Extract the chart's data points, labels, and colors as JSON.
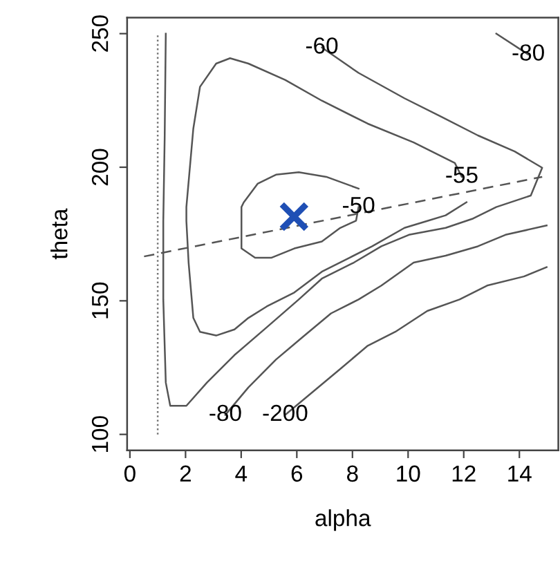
{
  "chart_data": {
    "type": "line",
    "xlabel": "alpha",
    "ylabel": "theta",
    "xlim": [
      -0.1,
      15.4
    ],
    "ylim": [
      94,
      256
    ],
    "xticks": [
      0,
      2,
      4,
      6,
      8,
      10,
      12,
      14
    ],
    "yticks": [
      100,
      150,
      200,
      250
    ],
    "line_style": "solid",
    "marker": "none",
    "series": [
      {
        "name": "-50",
        "color": "#555555",
        "x": [
          8.22,
          8.13,
          7.56,
          6.9,
          5.91,
          5.08,
          4.5,
          4.01,
          4.01,
          4.09,
          4.59,
          5.25,
          6.07,
          7.06,
          8.22
        ],
        "values": [
          185.1,
          180.0,
          177.3,
          172.2,
          169.6,
          166.1,
          166.1,
          169.6,
          185.1,
          186.8,
          193.8,
          197.2,
          198.1,
          196.4,
          192.0
        ]
      },
      {
        "name": "-55",
        "color": "#555555",
        "x": [
          11.93,
          11.68,
          10.2,
          8.55,
          6.9,
          5.58,
          4.26,
          3.6,
          3.1,
          2.52,
          2.28,
          2.03,
          2.03,
          2.11,
          2.28,
          2.52,
          3.1,
          3.76,
          4.26,
          4.92,
          5.91,
          6.9,
          7.89,
          8.71,
          9.87,
          10.69,
          11.35,
          12.1
        ],
        "values": [
          196.4,
          201.6,
          209.3,
          216.3,
          224.9,
          232.7,
          238.8,
          240.8,
          238.8,
          230.1,
          214.5,
          185.1,
          179.9,
          164.3,
          143.6,
          138.4,
          137.0,
          139.3,
          143.6,
          147.9,
          153.1,
          160.9,
          166.1,
          170.4,
          177.3,
          179.9,
          182.0,
          186.9
        ]
      },
      {
        "name": "-60",
        "color": "#555555",
        "x": [
          6.9,
          8.22,
          9.87,
          11.19,
          12.51,
          13.83,
          14.82,
          14.41,
          13.17,
          12.34,
          11.35,
          10.03,
          9.04,
          8.05,
          6.9,
          6.07,
          4.92,
          3.76,
          2.77,
          2.03,
          1.45,
          1.29,
          1.2,
          1.2,
          1.25,
          1.29
        ],
        "values": [
          244.8,
          235.3,
          225.8,
          218.9,
          211.9,
          205.9,
          199.8,
          189.4,
          185.1,
          180.8,
          177.3,
          174.7,
          170.4,
          164.3,
          158.3,
          150.5,
          140.1,
          129.7,
          119.4,
          110.7,
          110.7,
          119.4,
          150.5,
          179.9,
          211.1,
          250.0
        ]
      },
      {
        "name": "-80",
        "color": "#555555",
        "x": [
          14.32,
          13.17
        ],
        "values": [
          242.2,
          250.0
        ]
      },
      {
        "name": "-80",
        "color": "#555555",
        "x": [
          3.43,
          4.26,
          5.25,
          6.24,
          7.23,
          8.22,
          9.04,
          10.2,
          11.35,
          12.51,
          13.5,
          14.98
        ],
        "values": [
          107.3,
          117.6,
          128.0,
          136.7,
          145.3,
          150.5,
          155.7,
          164.3,
          166.9,
          170.4,
          174.7,
          178.2
        ]
      },
      {
        "name": "-200",
        "color": "#555555",
        "x": [
          5.58,
          6.57,
          7.56,
          8.55,
          9.54,
          10.69,
          11.85,
          12.84,
          14.16,
          14.98
        ],
        "values": [
          107.3,
          115.9,
          124.5,
          133.2,
          138.4,
          146.2,
          150.5,
          155.7,
          159.1,
          162.6
        ]
      },
      {
        "color": "#555555",
        "line_style": "dashed",
        "x": [
          0.51,
          14.82
        ],
        "values": [
          166.6,
          196.4
        ]
      },
      {
        "color": "#777777",
        "line_style": "dotted",
        "x": [
          1.0,
          1.0
        ],
        "values": [
          100,
          250
        ]
      },
      {
        "type": "scatter",
        "marker": "cross",
        "color": "#1f4fb5",
        "x": [
          5.9
        ],
        "values": [
          181.5
        ]
      }
    ]
  }
}
